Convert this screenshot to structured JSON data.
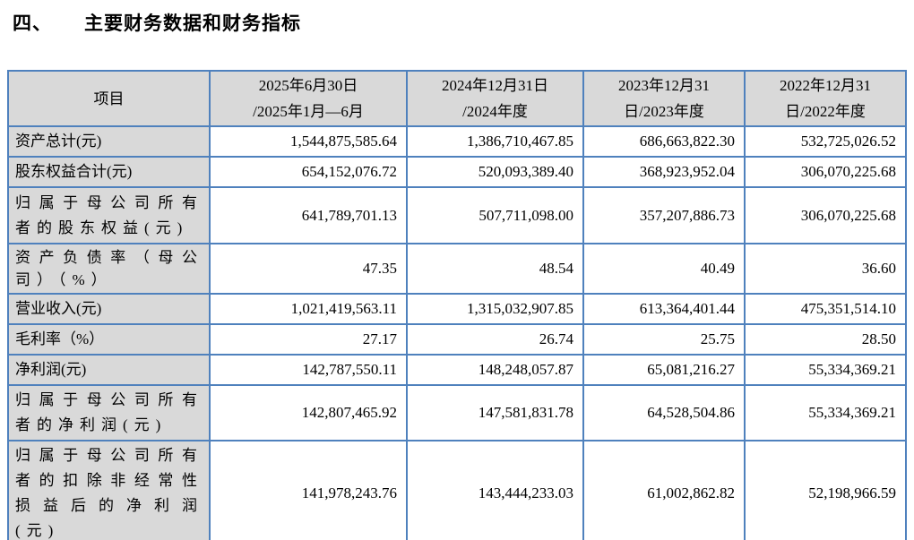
{
  "title": {
    "number": "四、",
    "text": "主要财务数据和财务指标"
  },
  "table": {
    "headers": [
      "项目",
      "2025年6月30日\n/2025年1月—6月",
      "2024年12月31日\n/2024年度",
      "2023年12月31\n日/2023年度",
      "2022年12月31\n日/2022年度"
    ],
    "rows": [
      {
        "label": "资产总计(元)",
        "values": [
          "1,544,875,585.64",
          "1,386,710,467.85",
          "686,663,822.30",
          "532,725,026.52"
        ]
      },
      {
        "label": "股东权益合计(元)",
        "values": [
          "654,152,076.72",
          "520,093,389.40",
          "368,923,952.04",
          "306,070,225.68"
        ]
      },
      {
        "label": "归属于母公司所有者的股东权益(元)",
        "values": [
          "641,789,701.13",
          "507,711,098.00",
          "357,207,886.73",
          "306,070,225.68"
        ]
      },
      {
        "label": "资产负债率（母公司）（%）",
        "values": [
          "47.35",
          "48.54",
          "40.49",
          "36.60"
        ]
      },
      {
        "label": "营业收入(元)",
        "values": [
          "1,021,419,563.11",
          "1,315,032,907.85",
          "613,364,401.44",
          "475,351,514.10"
        ]
      },
      {
        "label": "毛利率（%）",
        "values": [
          "27.17",
          "26.74",
          "25.75",
          "28.50"
        ]
      },
      {
        "label": "净利润(元)",
        "values": [
          "142,787,550.11",
          "148,248,057.87",
          "65,081,216.27",
          "55,334,369.21"
        ]
      },
      {
        "label": "归属于母公司所有者的净利润(元)",
        "values": [
          "142,807,465.92",
          "147,581,831.78",
          "64,528,504.86",
          "55,334,369.21"
        ]
      },
      {
        "label": "归属于母公司所有者的扣除非经常性损益后的净利润(元)",
        "values": [
          "141,978,243.76",
          "143,444,233.03",
          "61,002,862.82",
          "52,198,966.59"
        ]
      }
    ]
  },
  "colors": {
    "grid_border": "#4f81bd",
    "label_background": "#d9d9d9",
    "bottom_rule": "#17365d",
    "text": "#000000",
    "page_background": "#ffffff"
  }
}
